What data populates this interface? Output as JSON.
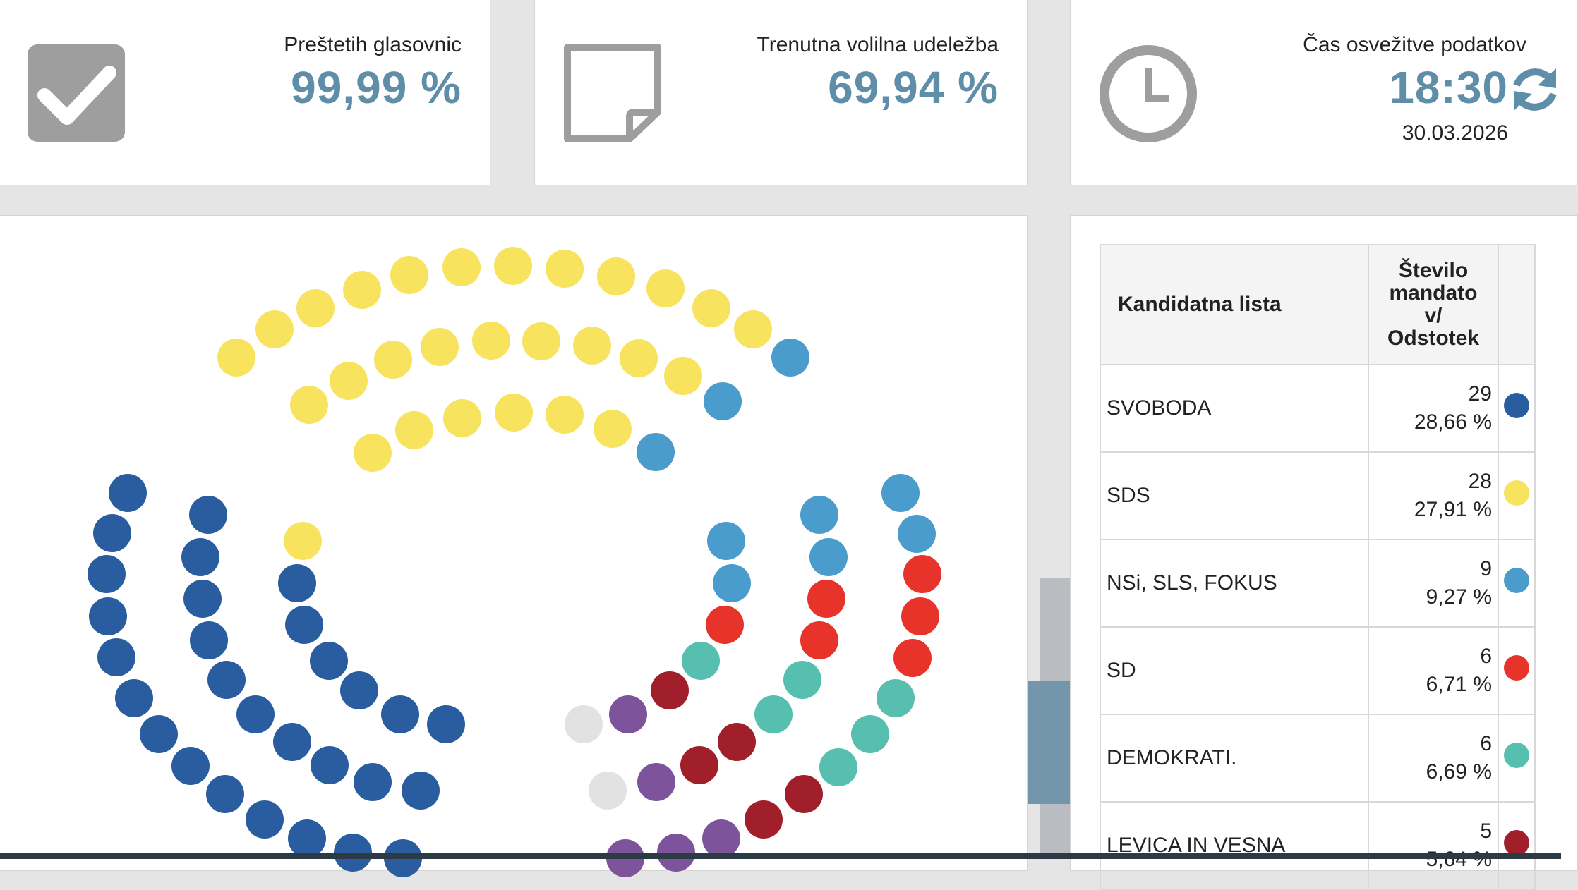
{
  "stats": {
    "counted": {
      "label": "Preštetih glasovnic",
      "value": "99,99 %"
    },
    "turnout": {
      "label": "Trenutna volilna udeležba",
      "value": "69,94 %"
    },
    "refresh": {
      "label": "Čas osvežitve podatkov",
      "time": "18:30",
      "date": "30.03.2026"
    }
  },
  "icons": {
    "counted": "checkbox-check-icon",
    "turnout": "note-page-icon",
    "refresh": "clock-icon",
    "reload": "refresh-icon"
  },
  "colors": {
    "accent": "#5f8ea8",
    "svoboda": "#2a5d9f",
    "sds": "#f8e35f",
    "nsi": "#4a9ccc",
    "sd": "#e8332b",
    "demokrati": "#56bfaf",
    "levica": "#a11f2b",
    "purple": "#7d539c",
    "grey": "#e2e2e2"
  },
  "table": {
    "headers": {
      "list": "Kandidatna lista",
      "seats_l1": "Število",
      "seats_l2": "mandato",
      "seats_l3": "v/",
      "seats_l4": "Odstotek"
    },
    "rows": [
      {
        "name": "SVOBODA",
        "seats": "29",
        "percent": "28,66 %",
        "color": "#2a5d9f"
      },
      {
        "name": "SDS",
        "seats": "28",
        "percent": "27,91 %",
        "color": "#f8e35f"
      },
      {
        "name": "NSi, SLS, FOKUS",
        "seats": "9",
        "percent": "9,27 %",
        "color": "#4a9ccc"
      },
      {
        "name": "SD",
        "seats": "6",
        "percent": "6,71 %",
        "color": "#e8332b"
      },
      {
        "name": "DEMOKRATI.",
        "seats": "6",
        "percent": "6,69 %",
        "color": "#56bfaf"
      },
      {
        "name": "LEVICA IN VESNA",
        "seats": "5",
        "percent": "5,64 %",
        "color": "#a11f2b"
      }
    ]
  }
}
